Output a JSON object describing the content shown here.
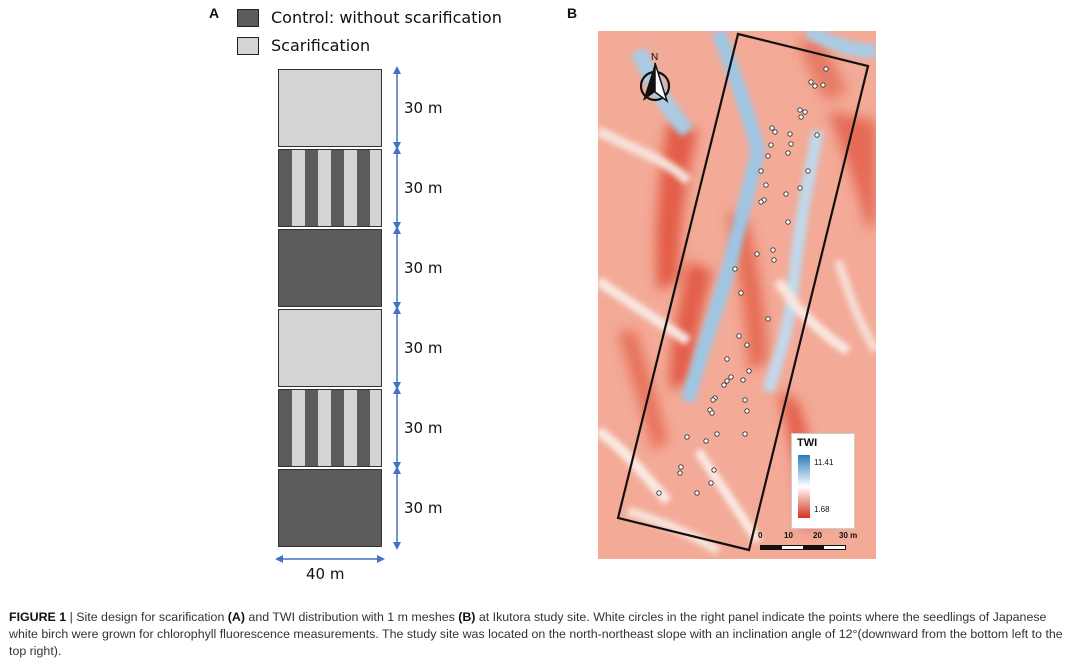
{
  "panel_a": {
    "letter": "A",
    "legend": [
      {
        "label": "Control: without scarification",
        "color": "#5b5b5b"
      },
      {
        "label": "Scarification",
        "color": "#d4d4d4"
      }
    ],
    "blocks": [
      "scarification",
      "striped",
      "control",
      "scarification",
      "striped",
      "control"
    ],
    "block_length": "30 m",
    "width_label": "40 m",
    "colors": {
      "control": "#5b5b5b",
      "scarification": "#d4d4d4",
      "arrow": "#4472c4"
    }
  },
  "panel_b": {
    "letter": "B",
    "north": "N",
    "legend": {
      "title": "TWI",
      "max": "11.41",
      "min": "1.68",
      "colors": [
        "#2b7bba",
        "#ffffff",
        "#d7301f"
      ]
    },
    "scalebar": [
      "0",
      "10",
      "20",
      "30 m"
    ]
  },
  "caption": {
    "label": "FIGURE 1",
    "sep": " | ",
    "t1": "Site design for scarification ",
    "b1": "(A)",
    "t2": " and TWI distribution with 1 m meshes ",
    "b2": "(B)",
    "t3": " at Ikutora study site. White circles in the right panel indicate the points where the seedlings of Japanese white birch were grown for chlorophyll fluorescence measurements. The study site was located on the north-northeast slope with an inclination angle of 12°(downward from the bottom left to the top right)."
  }
}
